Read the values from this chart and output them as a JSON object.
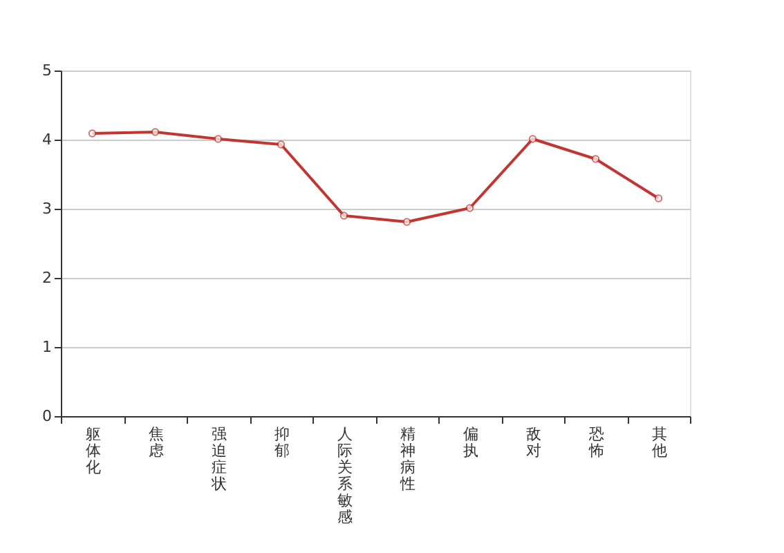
{
  "chart_data": {
    "type": "line",
    "categories": [
      "躯体化",
      "焦虑",
      "强迫症状",
      "抑郁",
      "人际关系敏感",
      "精神病性",
      "偏执",
      "敌对",
      "恐怖",
      "其他"
    ],
    "series": [
      {
        "color": "#c23531",
        "values": [
          4.09,
          4.11,
          4.01,
          3.93,
          2.9,
          2.81,
          3.01,
          4.01,
          3.72,
          3.15
        ]
      }
    ],
    "ylim": [
      0,
      5
    ],
    "yticks": [
      0,
      1,
      2,
      3,
      4,
      5
    ],
    "grid": "y",
    "marker": "circle",
    "line_style": "solid",
    "legend": false
  }
}
